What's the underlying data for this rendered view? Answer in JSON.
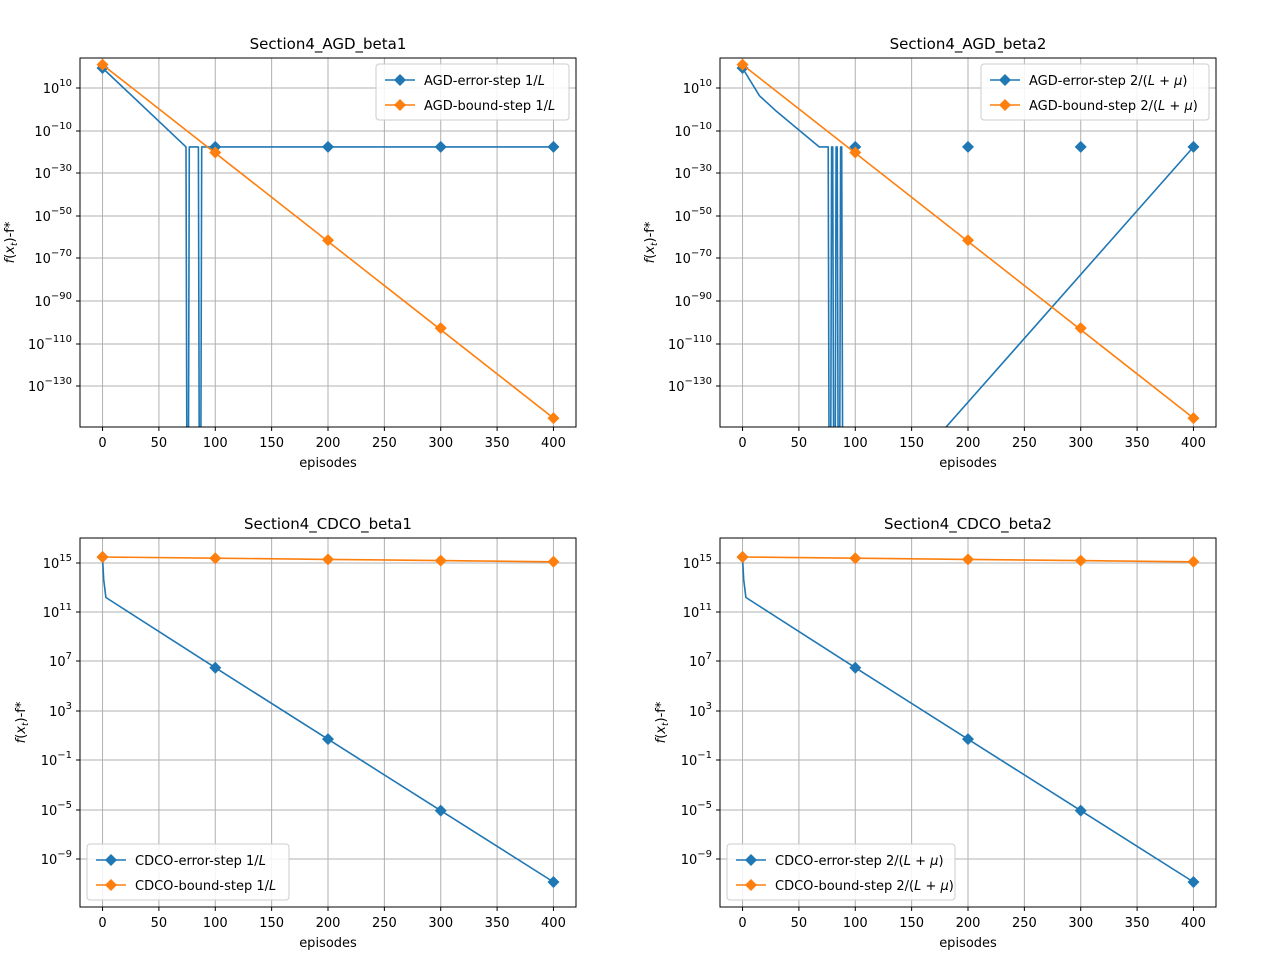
{
  "colors": {
    "blue": "#1f77b4",
    "orange": "#ff7f0e",
    "grid": "#b0b0b0",
    "axis": "#000000"
  },
  "chart_data": [
    {
      "type": "line",
      "title": "Section4_AGD_beta1",
      "xlabel": "episodes",
      "ylabel": "f(x_t)-f*",
      "yscale": "log",
      "xlim": [
        -20,
        420
      ],
      "ylim_log10": [
        -148,
        18
      ],
      "xticks": [
        "0",
        "50",
        "100",
        "150",
        "200",
        "250",
        "300",
        "350",
        "400"
      ],
      "yticks": [
        {
          "base": "10",
          "exp": "10"
        },
        {
          "base": "10",
          "exp": "−10"
        },
        {
          "base": "10",
          "exp": "−30"
        },
        {
          "base": "10",
          "exp": "−50"
        },
        {
          "base": "10",
          "exp": "−70"
        },
        {
          "base": "10",
          "exp": "−90"
        },
        {
          "base": "10",
          "exp": "−110"
        },
        {
          "base": "10",
          "exp": "−130"
        }
      ],
      "legend_position": "top-right",
      "series": [
        {
          "name": "AGD-error-step 1/L",
          "legend_prefix": "AGD-error-step 1/",
          "legend_var": "L",
          "color": "blue",
          "x": [
            0,
            74,
            75,
            76,
            77,
            85,
            86,
            87,
            88,
            400
          ],
          "log10_y": [
            13.5,
            -22,
            -200,
            -200,
            -22,
            -22,
            -200,
            -200,
            -22,
            -22
          ],
          "marker_x": [
            0,
            100,
            200,
            300,
            400
          ],
          "marker_log10_y": [
            13.5,
            -22,
            -22,
            -22,
            -22
          ]
        },
        {
          "name": "AGD-bound-step 1/L",
          "legend_prefix": "AGD-bound-step 1/",
          "legend_var": "L",
          "color": "orange",
          "x": [
            0,
            400
          ],
          "log10_y": [
            15,
            -144
          ],
          "marker_x": [
            0,
            100,
            200,
            300,
            400
          ],
          "marker_log10_y": [
            15,
            -24.5,
            -64,
            -103.5,
            -144
          ]
        }
      ]
    },
    {
      "type": "line",
      "title": "Section4_AGD_beta2",
      "xlabel": "episodes",
      "ylabel": "f(x_t)-f*",
      "yscale": "log",
      "xlim": [
        -20,
        420
      ],
      "ylim_log10": [
        -148,
        18
      ],
      "xticks": [
        "0",
        "50",
        "100",
        "150",
        "200",
        "250",
        "300",
        "350",
        "400"
      ],
      "yticks": [
        {
          "base": "10",
          "exp": "10"
        },
        {
          "base": "10",
          "exp": "−10"
        },
        {
          "base": "10",
          "exp": "−30"
        },
        {
          "base": "10",
          "exp": "−50"
        },
        {
          "base": "10",
          "exp": "−70"
        },
        {
          "base": "10",
          "exp": "−90"
        },
        {
          "base": "10",
          "exp": "−110"
        },
        {
          "base": "10",
          "exp": "−130"
        }
      ],
      "legend_position": "top-right",
      "series": [
        {
          "name": "AGD-error-step 2/(L+μ)",
          "legend_prefix": "AGD-error-step 2/(",
          "legend_var": "L + μ",
          "legend_suffix": ")",
          "color": "blue",
          "x": [
            0,
            15,
            30,
            68,
            76,
            77,
            78,
            79,
            80,
            81,
            82,
            83,
            84,
            85,
            86,
            87,
            88,
            89,
            90,
            400
          ],
          "log10_y": [
            13.5,
            1,
            -6,
            -22,
            -22,
            -200,
            -200,
            -22,
            -22,
            -200,
            -200,
            -22,
            -22,
            -200,
            -200,
            -22,
            -22,
            -200,
            -200,
            -22
          ],
          "marker_x": [
            0,
            100,
            200,
            300,
            400
          ],
          "marker_log10_y": [
            13.5,
            -22,
            -22,
            -22,
            -22
          ]
        },
        {
          "name": "AGD-bound-step 2/(L+μ)",
          "legend_prefix": "AGD-bound-step 2/(",
          "legend_var": "L + μ",
          "legend_suffix": ")",
          "color": "orange",
          "x": [
            0,
            400
          ],
          "log10_y": [
            15,
            -144
          ],
          "marker_x": [
            0,
            100,
            200,
            300,
            400
          ],
          "marker_log10_y": [
            15,
            -24.5,
            -64,
            -103.5,
            -144
          ]
        }
      ]
    },
    {
      "type": "line",
      "title": "Section4_CDCO_beta1",
      "xlabel": "episodes",
      "ylabel": "f(x_t)-f*",
      "yscale": "log",
      "xlim": [
        -20,
        420
      ],
      "ylim_log10": [
        -13.5,
        17.5
      ],
      "xticks": [
        "0",
        "50",
        "100",
        "150",
        "200",
        "250",
        "300",
        "350",
        "400"
      ],
      "yticks": [
        {
          "base": "10",
          "exp": "15"
        },
        {
          "base": "10",
          "exp": "11"
        },
        {
          "base": "10",
          "exp": "7"
        },
        {
          "base": "10",
          "exp": "3"
        },
        {
          "base": "10",
          "exp": "−1"
        },
        {
          "base": "10",
          "exp": "−5"
        },
        {
          "base": "10",
          "exp": "−9"
        }
      ],
      "legend_position": "bottom-left",
      "series": [
        {
          "name": "CDCO-error-step 1/L",
          "legend_prefix": "CDCO-error-step 1/",
          "legend_var": "L",
          "color": "blue",
          "x": [
            0,
            1,
            3,
            100,
            200,
            300,
            400
          ],
          "log10_y": [
            15.9,
            14,
            12.5,
            6.6,
            0.6,
            -5.4,
            -11.4
          ],
          "marker_x": [
            0,
            100,
            200,
            300,
            400
          ],
          "marker_log10_y": [
            15.9,
            6.6,
            0.6,
            -5.4,
            -11.4
          ]
        },
        {
          "name": "CDCO-bound-step 1/L",
          "legend_prefix": "CDCO-bound-step 1/",
          "legend_var": "L",
          "color": "orange",
          "x": [
            0,
            100,
            200,
            300,
            400
          ],
          "log10_y": [
            15.9,
            15.8,
            15.7,
            15.6,
            15.5
          ],
          "marker_x": [
            0,
            100,
            200,
            300,
            400
          ],
          "marker_log10_y": [
            15.9,
            15.8,
            15.7,
            15.6,
            15.5
          ]
        }
      ]
    },
    {
      "type": "line",
      "title": "Section4_CDCO_beta2",
      "xlabel": "episodes",
      "ylabel": "f(x_t)-f*",
      "yscale": "log",
      "xlim": [
        -20,
        420
      ],
      "ylim_log10": [
        -13.5,
        17.5
      ],
      "xticks": [
        "0",
        "50",
        "100",
        "150",
        "200",
        "250",
        "300",
        "350",
        "400"
      ],
      "yticks": [
        {
          "base": "10",
          "exp": "15"
        },
        {
          "base": "10",
          "exp": "11"
        },
        {
          "base": "10",
          "exp": "7"
        },
        {
          "base": "10",
          "exp": "3"
        },
        {
          "base": "10",
          "exp": "−1"
        },
        {
          "base": "10",
          "exp": "−5"
        },
        {
          "base": "10",
          "exp": "−9"
        }
      ],
      "legend_position": "bottom-left",
      "series": [
        {
          "name": "CDCO-error-step 2/(L+μ)",
          "legend_prefix": "CDCO-error-step 2/(",
          "legend_var": "L + μ",
          "legend_suffix": ")",
          "color": "blue",
          "x": [
            0,
            1,
            3,
            100,
            200,
            300,
            400
          ],
          "log10_y": [
            15.9,
            14,
            12.5,
            6.6,
            0.6,
            -5.4,
            -11.4
          ],
          "marker_x": [
            0,
            100,
            200,
            300,
            400
          ],
          "marker_log10_y": [
            15.9,
            6.6,
            0.6,
            -5.4,
            -11.4
          ]
        },
        {
          "name": "CDCO-bound-step 2/(L+μ)",
          "legend_prefix": "CDCO-bound-step 2/(",
          "legend_var": "L + μ",
          "legend_suffix": ")",
          "color": "orange",
          "x": [
            0,
            100,
            200,
            300,
            400
          ],
          "log10_y": [
            15.9,
            15.8,
            15.7,
            15.6,
            15.5
          ],
          "marker_x": [
            0,
            100,
            200,
            300,
            400
          ],
          "marker_log10_y": [
            15.9,
            15.8,
            15.7,
            15.6,
            15.5
          ]
        }
      ]
    }
  ]
}
